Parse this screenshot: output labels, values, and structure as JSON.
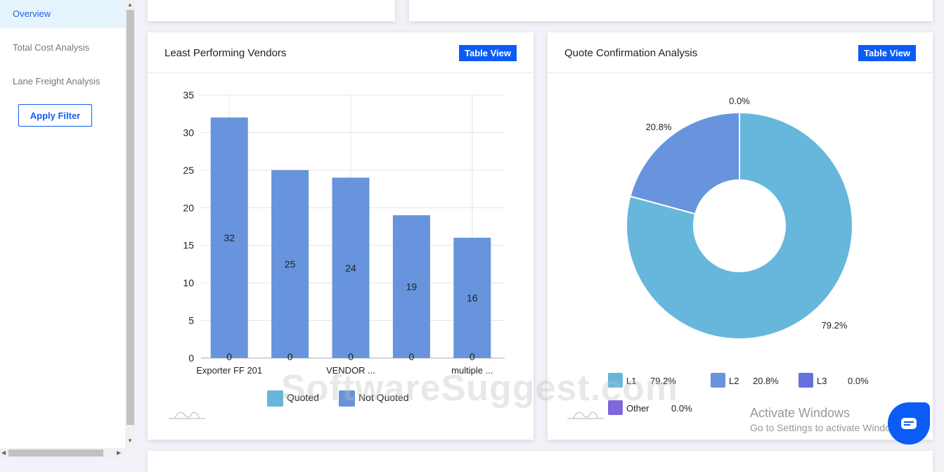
{
  "sidebar": {
    "items": [
      {
        "label": "Overview",
        "active": true
      },
      {
        "label": "Total Cost Analysis"
      },
      {
        "label": "Lane Freight Analysis"
      }
    ],
    "apply_filter": "Apply Filter"
  },
  "vendors_card": {
    "title": "Least Performing Vendors",
    "table_view": "Table View"
  },
  "quote_card": {
    "title": "Quote Confirmation Analysis",
    "table_view": "Table View"
  },
  "chart_data": [
    {
      "type": "bar",
      "stacked": true,
      "categories": [
        "Exporter FF 201",
        "",
        "VENDOR ...",
        "",
        "multiple ..."
      ],
      "series": [
        {
          "name": "Quoted",
          "color": "#67b7dc",
          "values": [
            0,
            0,
            0,
            0,
            0
          ]
        },
        {
          "name": "Not Quoted",
          "color": "#6794dc",
          "values": [
            32,
            25,
            24,
            19,
            16
          ]
        }
      ],
      "ylim": [
        0,
        35
      ],
      "yticks": [
        0,
        5,
        10,
        15,
        20,
        25,
        30,
        35
      ],
      "grid": true,
      "legend": "bottom"
    },
    {
      "type": "pie",
      "donut": true,
      "slices": [
        {
          "name": "L1",
          "value": 79.2,
          "label": "79.2%",
          "color": "#67b7dc"
        },
        {
          "name": "L2",
          "value": 20.8,
          "label": "20.8%",
          "color": "#6794dc"
        },
        {
          "name": "L3",
          "value": 0,
          "label": "0.0%",
          "color": "#6771dc"
        },
        {
          "name": "Other",
          "value": 0,
          "label": "0.0%",
          "color": "#8067dc"
        }
      ],
      "legend": "bottom"
    }
  ],
  "watermark": "SoftwareSuggest.com",
  "windows": {
    "line1": "Activate Windows",
    "line2": "Go to Settings to activate Windows."
  }
}
